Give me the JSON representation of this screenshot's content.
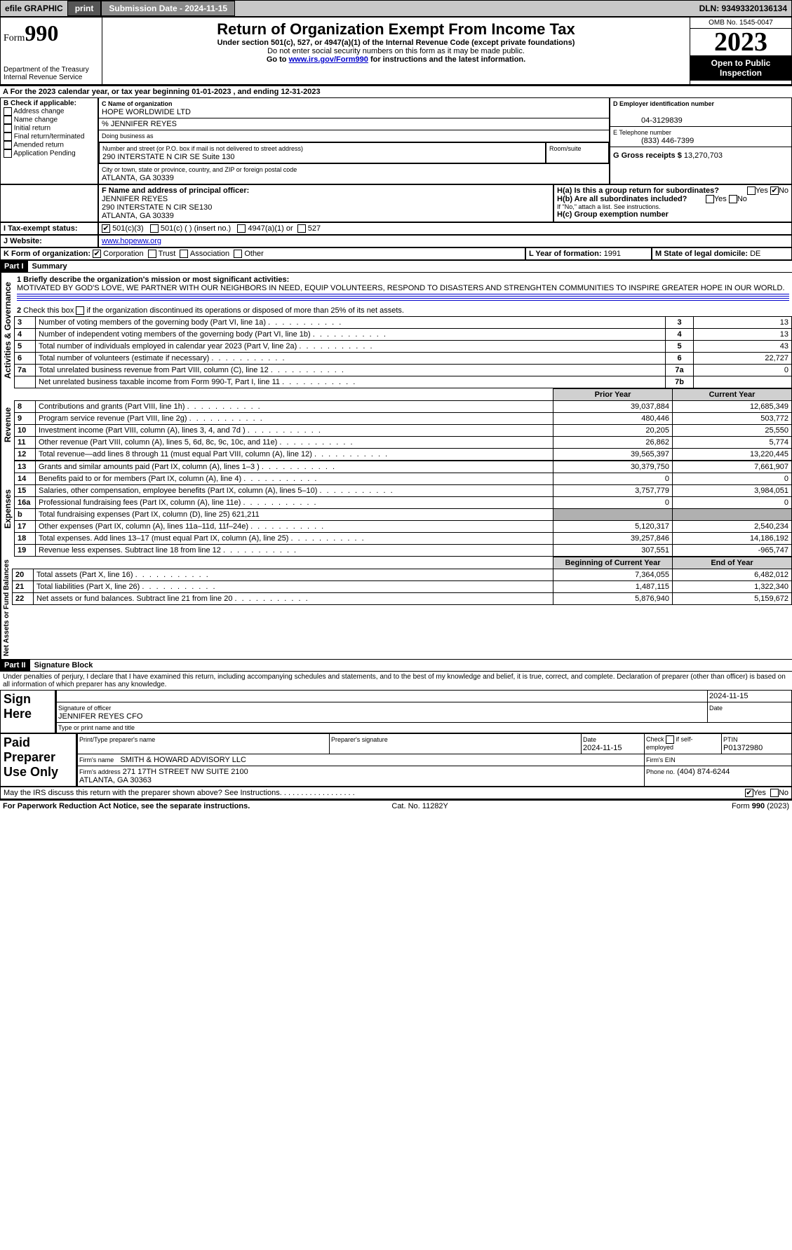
{
  "topbar": {
    "efile": "efile GRAPHIC",
    "print": "print",
    "submission_label": "Submission Date - 2024-11-15",
    "dln_label": "DLN: 93493320136134"
  },
  "header": {
    "form_prefix": "Form",
    "form_num": "990",
    "title": "Return of Organization Exempt From Income Tax",
    "subtitle": "Under section 501(c), 527, or 4947(a)(1) of the Internal Revenue Code (except private foundations)",
    "note1": "Do not enter social security numbers on this form as it may be made public.",
    "note2_pre": "Go to ",
    "note2_link": "www.irs.gov/Form990",
    "note2_post": " for instructions and the latest information.",
    "dept": "Department of the Treasury\nInternal Revenue Service",
    "omb": "OMB No. 1545-0047",
    "year": "2023",
    "inspect": "Open to Public Inspection"
  },
  "sectionA": {
    "line": "A For the 2023 calendar year, or tax year beginning 01-01-2023   , and ending 12-31-2023"
  },
  "B": {
    "label": "B Check if applicable:",
    "items": [
      "Address change",
      "Name change",
      "Initial return",
      "Final return/terminated",
      "Amended return",
      "Application Pending"
    ]
  },
  "C": {
    "name_label": "C Name of organization",
    "name": "HOPE WORLDWIDE LTD",
    "care_of": "% JENNIFER REYES",
    "dba_label": "Doing business as",
    "street_label": "Number and street (or P.O. box if mail is not delivered to street address)",
    "room_label": "Room/suite",
    "street": "290 INTERSTATE N CIR SE Suite 130",
    "city_label": "City or town, state or province, country, and ZIP or foreign postal code",
    "city": "ATLANTA, GA  30339"
  },
  "D": {
    "label": "D Employer identification number",
    "value": "04-3129839"
  },
  "E": {
    "label": "E Telephone number",
    "value": "(833) 446-7399"
  },
  "G": {
    "label": "G Gross receipts $",
    "value": "13,270,703"
  },
  "F": {
    "label": "F Name and address of principal officer:",
    "name": "JENNIFER REYES",
    "addr1": "290 INTERSTATE N CIR SE130",
    "addr2": "ATLANTA, GA  30339"
  },
  "H": {
    "a_label": "H(a)  Is this a group return for subordinates?",
    "b_label": "H(b)  Are all subordinates included?",
    "b_note": "If \"No,\" attach a list. See instructions.",
    "c_label": "H(c)  Group exemption number"
  },
  "I": {
    "label": "I   Tax-exempt status:",
    "opt1": "501(c)(3)",
    "opt2": "501(c) (  ) (insert no.)",
    "opt3": "4947(a)(1) or",
    "opt4": "527"
  },
  "J": {
    "label": "J   Website:",
    "value": "www.hopeww.org"
  },
  "K": {
    "label": "K Form of organization:",
    "opts": [
      "Corporation",
      "Trust",
      "Association",
      "Other"
    ]
  },
  "L": {
    "label": "L Year of formation:",
    "value": "1991"
  },
  "M": {
    "label": "M State of legal domicile:",
    "value": "DE"
  },
  "part1": {
    "tag": "Part I",
    "title": "Summary",
    "line1_label": "1  Briefly describe the organization's mission or most significant activities:",
    "mission": "MOTIVATED BY GOD'S LOVE, WE PARTNER WITH OUR NEIGHBORS IN NEED, EQUIP VOLUNTEERS, RESPOND TO DISASTERS AND STRENGHTEN COMMUNITIES TO INSPIRE GREATER HOPE IN OUR WORLD.",
    "line2": "2  Check this box      if the organization discontinued its operations or disposed of more than 25% of its net assets.",
    "side_gov": "Activities & Governance",
    "side_rev": "Revenue",
    "side_exp": "Expenses",
    "side_net": "Net Assets or Fund Balances",
    "gov_rows": [
      {
        "n": "3",
        "t": "Number of voting members of the governing body (Part VI, line 1a)",
        "box": "3",
        "v": "13"
      },
      {
        "n": "4",
        "t": "Number of independent voting members of the governing body (Part VI, line 1b)",
        "box": "4",
        "v": "13"
      },
      {
        "n": "5",
        "t": "Total number of individuals employed in calendar year 2023 (Part V, line 2a)",
        "box": "5",
        "v": "43"
      },
      {
        "n": "6",
        "t": "Total number of volunteers (estimate if necessary)",
        "box": "6",
        "v": "22,727"
      },
      {
        "n": "7a",
        "t": "Total unrelated business revenue from Part VIII, column (C), line 12",
        "box": "7a",
        "v": "0"
      },
      {
        "n": "",
        "t": "Net unrelated business taxable income from Form 990-T, Part I, line 11",
        "box": "7b",
        "v": ""
      }
    ],
    "hdr_prior": "Prior Year",
    "hdr_curr": "Current Year",
    "rev_rows": [
      {
        "n": "8",
        "t": "Contributions and grants (Part VIII, line 1h)",
        "p": "39,037,884",
        "c": "12,685,349"
      },
      {
        "n": "9",
        "t": "Program service revenue (Part VIII, line 2g)",
        "p": "480,446",
        "c": "503,772"
      },
      {
        "n": "10",
        "t": "Investment income (Part VIII, column (A), lines 3, 4, and 7d )",
        "p": "20,205",
        "c": "25,550"
      },
      {
        "n": "11",
        "t": "Other revenue (Part VIII, column (A), lines 5, 6d, 8c, 9c, 10c, and 11e)",
        "p": "26,862",
        "c": "5,774"
      },
      {
        "n": "12",
        "t": "Total revenue—add lines 8 through 11 (must equal Part VIII, column (A), line 12)",
        "p": "39,565,397",
        "c": "13,220,445"
      }
    ],
    "exp_rows": [
      {
        "n": "13",
        "t": "Grants and similar amounts paid (Part IX, column (A), lines 1–3 )",
        "p": "30,379,750",
        "c": "7,661,907"
      },
      {
        "n": "14",
        "t": "Benefits paid to or for members (Part IX, column (A), line 4)",
        "p": "0",
        "c": "0"
      },
      {
        "n": "15",
        "t": "Salaries, other compensation, employee benefits (Part IX, column (A), lines 5–10)",
        "p": "3,757,779",
        "c": "3,984,051"
      },
      {
        "n": "16a",
        "t": "Professional fundraising fees (Part IX, column (A), line 11e)",
        "p": "0",
        "c": "0"
      },
      {
        "n": "b",
        "t": "Total fundraising expenses (Part IX, column (D), line 25) 621,211",
        "p": "",
        "c": "",
        "shade": true
      },
      {
        "n": "17",
        "t": "Other expenses (Part IX, column (A), lines 11a–11d, 11f–24e)",
        "p": "5,120,317",
        "c": "2,540,234"
      },
      {
        "n": "18",
        "t": "Total expenses. Add lines 13–17 (must equal Part IX, column (A), line 25)",
        "p": "39,257,846",
        "c": "14,186,192"
      },
      {
        "n": "19",
        "t": "Revenue less expenses. Subtract line 18 from line 12",
        "p": "307,551",
        "c": "-965,747"
      }
    ],
    "hdr_beg": "Beginning of Current Year",
    "hdr_end": "End of Year",
    "net_rows": [
      {
        "n": "20",
        "t": "Total assets (Part X, line 16)",
        "p": "7,364,055",
        "c": "6,482,012"
      },
      {
        "n": "21",
        "t": "Total liabilities (Part X, line 26)",
        "p": "1,487,115",
        "c": "1,322,340"
      },
      {
        "n": "22",
        "t": "Net assets or fund balances. Subtract line 21 from line 20",
        "p": "5,876,940",
        "c": "5,159,672"
      }
    ]
  },
  "part2": {
    "tag": "Part II",
    "title": "Signature Block",
    "decl": "Under penalties of perjury, I declare that I have examined this return, including accompanying schedules and statements, and to the best of my knowledge and belief, it is true, correct, and complete. Declaration of preparer (other than officer) is based on all information of which preparer has any knowledge.",
    "sign_here": "Sign Here",
    "sig_date": "2024-11-15",
    "sig_officer_label": "Signature of officer",
    "sig_officer": "JENNIFER REYES  CFO",
    "sig_type_label": "Type or print name and title",
    "date_label": "Date",
    "paid": "Paid Preparer Use Only",
    "prep_name_label": "Print/Type preparer's name",
    "prep_sig_label": "Preparer's signature",
    "prep_date_label": "Date",
    "prep_date": "2024-11-15",
    "self_emp": "Check       if self-employed",
    "ptin_label": "PTIN",
    "ptin": "P01372980",
    "firm_name_label": "Firm's name",
    "firm_name": "SMITH & HOWARD ADVISORY LLC",
    "firm_ein_label": "Firm's EIN",
    "firm_addr_label": "Firm's address",
    "firm_addr": "271 17TH STREET NW SUITE 2100\nATLANTA, GA  30363",
    "phone_label": "Phone no.",
    "phone": "(404) 874-6244",
    "discuss": "May the IRS discuss this return with the preparer shown above? See Instructions."
  },
  "footer": {
    "left": "For Paperwork Reduction Act Notice, see the separate instructions.",
    "mid": "Cat. No. 11282Y",
    "right": "Form 990 (2023)"
  }
}
